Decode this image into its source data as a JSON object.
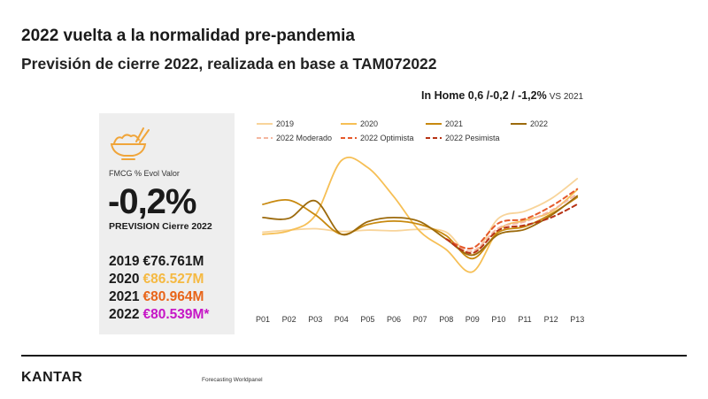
{
  "header": {
    "title": "2022 vuelta a la normalidad pre-pandemia",
    "subtitle": "Previsión de cierre 2022, realizada en base a TAM072022"
  },
  "in_home": {
    "text": "In Home 0,6 /-0,2 / -1,2%",
    "vs": "VS 2021"
  },
  "kpi": {
    "icon": "bowl-chopsticks-icon",
    "label": "FMCG % Evol Valor",
    "value": "-0,2%",
    "caption": "PREVISION Cierre 2022",
    "totals": [
      {
        "year": "2019",
        "amount": "€76.761M",
        "color": "#1a1a1a"
      },
      {
        "year": "2020",
        "amount": "€86.527M",
        "color": "#f5b942"
      },
      {
        "year": "2021",
        "amount": "€80.964M",
        "color": "#e8651a"
      },
      {
        "year": "2022",
        "amount": "€80.539M*",
        "color": "#c616c6"
      }
    ]
  },
  "chart_data": {
    "type": "line",
    "title": "",
    "xlabel": "",
    "ylabel": "",
    "categories": [
      "P01",
      "P02",
      "P03",
      "P04",
      "P05",
      "P06",
      "P07",
      "P08",
      "P09",
      "P10",
      "P11",
      "P12",
      "P13"
    ],
    "ylim": [
      -10,
      12
    ],
    "grid": false,
    "legend_position": "top",
    "series": [
      {
        "name": "2019",
        "color": "#f8d49a",
        "dash": false,
        "values": [
          0.5,
          0.8,
          1.0,
          0.6,
          0.8,
          0.7,
          0.9,
          0.5,
          -2.7,
          2.5,
          3.5,
          5.3,
          8.2
        ]
      },
      {
        "name": "2020",
        "color": "#f6bf55",
        "dash": false,
        "values": [
          0.2,
          0.7,
          2.9,
          10.8,
          9.8,
          5.6,
          0.6,
          -2.0,
          -5.2,
          0.8,
          2.2,
          3.4,
          6.6
        ]
      },
      {
        "name": "2021",
        "color": "#c8890f",
        "dash": false,
        "values": [
          4.5,
          5.1,
          3.0,
          0.2,
          1.6,
          2.1,
          1.6,
          0.0,
          -3.3,
          0.5,
          1.3,
          3.1,
          5.5
        ]
      },
      {
        "name": "2022",
        "color": "#9c6a0c",
        "dash": false,
        "values": [
          2.6,
          2.5,
          5.0,
          0.2,
          2.0,
          2.6,
          2.0,
          -0.5,
          -2.8,
          0.2,
          0.9,
          2.9,
          5.7
        ]
      },
      {
        "name": "2022 Moderado",
        "color": "#f4b7a0",
        "dash": true,
        "values": [
          null,
          null,
          null,
          null,
          null,
          null,
          null,
          -0.5,
          -2.2,
          1.1,
          2.0,
          3.6,
          6.0
        ]
      },
      {
        "name": "2022 Optimista",
        "color": "#e5592a",
        "dash": true,
        "values": [
          null,
          null,
          null,
          null,
          null,
          null,
          null,
          -0.5,
          -1.8,
          1.8,
          2.4,
          4.2,
          6.7
        ]
      },
      {
        "name": "2022 Pesimista",
        "color": "#b73315",
        "dash": true,
        "values": [
          null,
          null,
          null,
          null,
          null,
          null,
          null,
          -0.5,
          -2.5,
          0.8,
          1.5,
          2.6,
          4.5
        ]
      }
    ]
  },
  "footer": {
    "brand": "KANTAR",
    "note": "Forecasting Worldpanel"
  }
}
